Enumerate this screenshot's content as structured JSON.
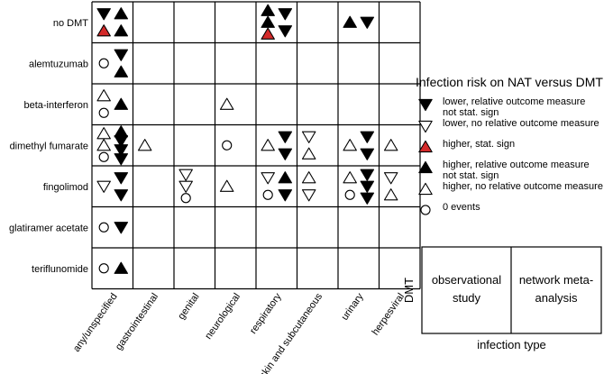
{
  "rows": [
    "no DMT",
    "alemtuzumab",
    "beta-interferon",
    "dimethyl fumarate",
    "fingolimod",
    "glatiramer acetate",
    "teriflunomide"
  ],
  "columns": [
    "any/unspecified",
    "gastrointestinal",
    "genital",
    "neurological",
    "respiratory",
    "skin and subcutaneous",
    "urinary",
    "herpesviral"
  ],
  "legend": {
    "title": "Infection risk on NAT versus DMT",
    "items": [
      {
        "symbol": "tri-down-filled",
        "lines": [
          "lower, relative outcome measure",
          "not stat. sign"
        ]
      },
      {
        "symbol": "tri-down-open",
        "lines": [
          "lower, no relative outcome measure"
        ]
      },
      {
        "symbol": "tri-up-red",
        "lines": [
          "higher, stat. sign"
        ]
      },
      {
        "symbol": "tri-up-filled",
        "lines": [
          "higher, relative outcome measure",
          "not stat. sign"
        ]
      },
      {
        "symbol": "tri-up-open",
        "lines": [
          "higher, no relative outcome measure"
        ]
      },
      {
        "symbol": "circle",
        "lines": [
          "0 events"
        ]
      }
    ]
  },
  "key": {
    "row_label": "DMT",
    "cell_left": [
      "observational",
      "study"
    ],
    "cell_right": [
      "network meta-",
      "analysis"
    ],
    "col_label": "infection type"
  },
  "cells": [
    {
      "r": 0,
      "c": 0,
      "left": [
        "tri-down-filled",
        "tri-up-red"
      ],
      "right": [
        "tri-up-filled",
        "tri-up-filled"
      ]
    },
    {
      "r": 0,
      "c": 4,
      "left": [
        "tri-up-filled",
        "tri-up-filled",
        "tri-up-red"
      ],
      "right": [
        "tri-down-filled",
        "tri-down-filled"
      ]
    },
    {
      "r": 0,
      "c": 6,
      "left": [
        "tri-up-filled"
      ],
      "right": [
        "tri-down-filled"
      ]
    },
    {
      "r": 1,
      "c": 0,
      "left": [
        "circle"
      ],
      "right": [
        "tri-down-filled",
        "tri-up-filled"
      ]
    },
    {
      "r": 2,
      "c": 0,
      "left": [
        "tri-up-open",
        "circle"
      ],
      "right": [
        "tri-up-filled"
      ]
    },
    {
      "r": 2,
      "c": 3,
      "left": [
        "tri-up-open"
      ],
      "right": []
    },
    {
      "r": 3,
      "c": 0,
      "left": [
        "tri-up-open",
        "tri-up-open",
        "circle"
      ],
      "right": [
        "tri-up-filled",
        "tri-down-filled",
        "tri-down-filled",
        "tri-down-filled"
      ]
    },
    {
      "r": 3,
      "c": 1,
      "left": [
        "tri-up-open"
      ],
      "right": []
    },
    {
      "r": 3,
      "c": 3,
      "left": [
        "circle"
      ],
      "right": []
    },
    {
      "r": 3,
      "c": 4,
      "left": [
        "tri-up-open"
      ],
      "right": [
        "tri-down-filled",
        "tri-down-filled"
      ]
    },
    {
      "r": 3,
      "c": 5,
      "left": [
        "tri-down-open",
        "tri-up-open"
      ],
      "right": []
    },
    {
      "r": 3,
      "c": 6,
      "left": [
        "tri-up-open"
      ],
      "right": [
        "tri-down-filled",
        "tri-down-filled"
      ]
    },
    {
      "r": 3,
      "c": 7,
      "left": [
        "tri-up-open"
      ],
      "right": []
    },
    {
      "r": 4,
      "c": 0,
      "left": [
        "tri-down-open"
      ],
      "right": [
        "tri-down-filled",
        "tri-down-filled"
      ]
    },
    {
      "r": 4,
      "c": 2,
      "left": [
        "tri-down-open",
        "tri-down-open",
        "circle"
      ],
      "right": []
    },
    {
      "r": 4,
      "c": 3,
      "left": [
        "tri-up-open"
      ],
      "right": []
    },
    {
      "r": 4,
      "c": 4,
      "left": [
        "tri-down-open",
        "circle"
      ],
      "right": [
        "tri-up-filled",
        "tri-down-filled"
      ]
    },
    {
      "r": 4,
      "c": 5,
      "left": [
        "tri-up-open",
        "tri-down-open"
      ],
      "right": []
    },
    {
      "r": 4,
      "c": 6,
      "left": [
        "tri-up-open",
        "circle"
      ],
      "right": [
        "tri-down-filled",
        "tri-down-filled",
        "tri-down-filled"
      ]
    },
    {
      "r": 4,
      "c": 7,
      "left": [
        "tri-down-open",
        "tri-up-open"
      ],
      "right": []
    },
    {
      "r": 5,
      "c": 0,
      "left": [
        "circle"
      ],
      "right": [
        "tri-down-filled"
      ]
    },
    {
      "r": 6,
      "c": 0,
      "left": [
        "circle"
      ],
      "right": [
        "tri-up-filled"
      ]
    }
  ],
  "colors": {
    "red": "#d42a2a",
    "ink": "#000000"
  }
}
